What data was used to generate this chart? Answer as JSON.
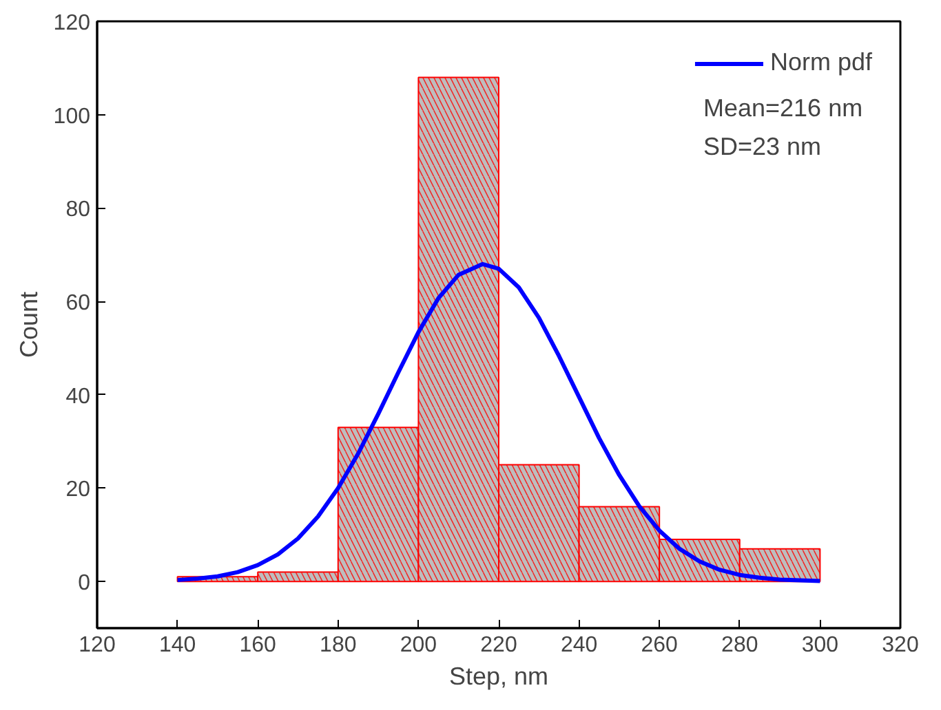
{
  "chart_data": {
    "type": "histogram",
    "xlabel": "Step, nm",
    "ylabel": "Count",
    "xlim": [
      120,
      320
    ],
    "ylim": [
      -10,
      120
    ],
    "xticks": [
      120,
      140,
      160,
      180,
      200,
      220,
      240,
      260,
      280,
      300,
      320
    ],
    "yticks": [
      0,
      20,
      40,
      60,
      80,
      100,
      120
    ],
    "grid": false,
    "legend": "top right",
    "annotations": [
      "Mean=216 nm",
      "SD=23 nm"
    ],
    "series": [
      {
        "color": "#ff0000",
        "bins": [
          140,
          160,
          180,
          200,
          220,
          240,
          260,
          280,
          300
        ],
        "values": [
          1,
          2,
          33,
          108,
          25,
          16,
          9,
          7
        ]
      },
      {
        "type": "line",
        "name": "Norm pdf",
        "color": "#0000ff",
        "x": [
          140,
          145,
          150,
          155,
          160,
          165,
          170,
          175,
          180,
          185,
          190,
          195,
          200,
          205,
          210,
          216,
          220,
          225,
          230,
          235,
          240,
          245,
          250,
          255,
          260,
          265,
          270,
          275,
          280,
          285,
          290,
          300
        ],
        "values": [
          0.3,
          0.6,
          1.1,
          2.0,
          3.5,
          5.8,
          9.2,
          13.9,
          20.0,
          27.4,
          35.9,
          44.8,
          53.4,
          60.7,
          65.7,
          68,
          67.0,
          63.0,
          56.5,
          48.3,
          39.5,
          30.7,
          22.8,
          16.1,
          10.9,
          7.0,
          4.3,
          2.5,
          1.4,
          0.8,
          0.4,
          0.1
        ]
      }
    ]
  }
}
